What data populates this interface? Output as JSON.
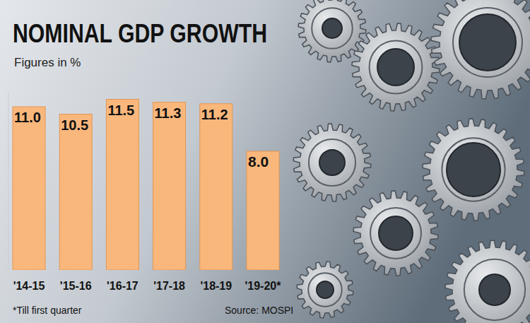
{
  "chart_data": {
    "type": "bar",
    "title": "NOMINAL GDP GROWTH",
    "subtitle": "Figures in %",
    "categories": [
      "'14-15",
      "'15-16",
      "'16-17",
      "'17-18",
      "'18-19",
      "'19-20*"
    ],
    "values": [
      11.0,
      10.5,
      11.5,
      11.3,
      11.2,
      8.0
    ],
    "value_labels": [
      "11.0",
      "10.5",
      "11.5",
      "11.3",
      "11.2",
      "8.0"
    ],
    "color": "#f9b77c",
    "ylim": [
      0,
      12
    ],
    "grid": false,
    "data_labels": true,
    "tick_labels": "x",
    "footnote": "*Till first quarter",
    "source": "Source: MOSPI"
  }
}
